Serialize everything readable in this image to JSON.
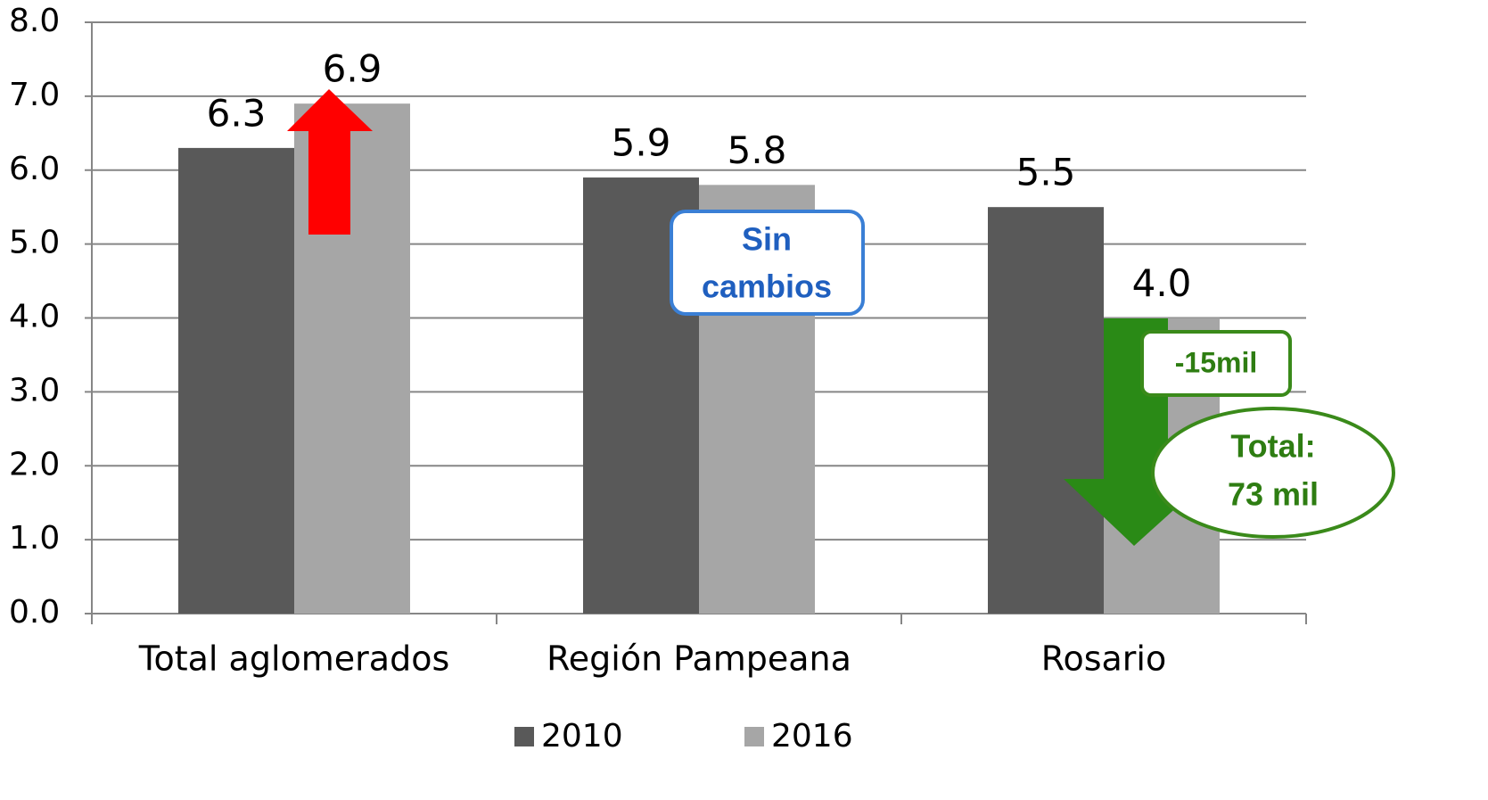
{
  "chart_data": {
    "type": "bar",
    "categories": [
      "Total aglomerados",
      "Región Pampeana",
      "Rosario"
    ],
    "series": [
      {
        "name": "2010",
        "color": "#595959",
        "values": [
          6.3,
          5.9,
          5.5
        ],
        "value_labels": [
          "6.3",
          "5.9",
          "5.5"
        ]
      },
      {
        "name": "2016",
        "color": "#a6a6a6",
        "values": [
          6.9,
          5.8,
          4.0
        ],
        "value_labels": [
          "6.9",
          "5.8",
          "4.0"
        ]
      }
    ],
    "ylim": [
      0,
      8
    ],
    "yticks": [
      {
        "value": 0,
        "label": "0.0"
      },
      {
        "value": 1,
        "label": "1.0"
      },
      {
        "value": 2,
        "label": "2.0"
      },
      {
        "value": 3,
        "label": "3.0"
      },
      {
        "value": 4,
        "label": "4.0"
      },
      {
        "value": 5,
        "label": "5.0"
      },
      {
        "value": 6,
        "label": "6.0"
      },
      {
        "value": 7,
        "label": "7.0"
      },
      {
        "value": 8,
        "label": "8.0"
      }
    ],
    "grid": true,
    "legend": "bottom",
    "annotations": [
      {
        "lines": [
          "Sin",
          "cambios"
        ]
      },
      {
        "lines": [
          "-15mil"
        ]
      },
      {
        "lines": [
          "Total:",
          "73 mil"
        ]
      }
    ]
  }
}
